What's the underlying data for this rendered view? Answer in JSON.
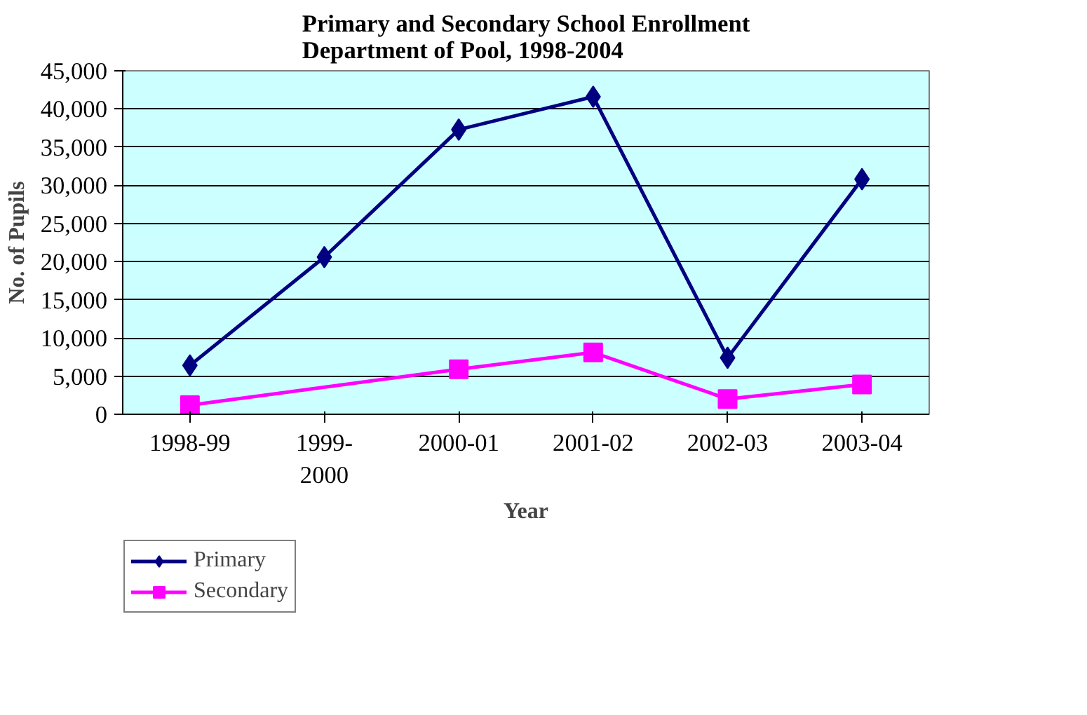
{
  "chart_data": {
    "type": "line",
    "title": "Primary and Secondary School Enrollment\nDepartment of Pool, 1998-2004",
    "xlabel": "Year",
    "ylabel": "No. of Pupils",
    "categories": [
      "1998-99",
      "1999-2000",
      "2000-01",
      "2001-02",
      "2002-03",
      "2003-04"
    ],
    "series": [
      {
        "name": "Primary",
        "color": "#000080",
        "marker": "diamond",
        "values": [
          6400,
          20600,
          37300,
          41600,
          7400,
          30800
        ]
      },
      {
        "name": "Secondary",
        "color": "#ff00ff",
        "marker": "square",
        "values": [
          1200,
          null,
          5900,
          8100,
          2000,
          3900
        ]
      }
    ],
    "ylim": [
      0,
      45000
    ],
    "yticks": [
      {
        "value": 0,
        "label": "0"
      },
      {
        "value": 5000,
        "label": "5,000"
      },
      {
        "value": 10000,
        "label": "10,000"
      },
      {
        "value": 15000,
        "label": "15,000"
      },
      {
        "value": 20000,
        "label": "20,000"
      },
      {
        "value": 25000,
        "label": "25,000"
      },
      {
        "value": 30000,
        "label": "30,000"
      },
      {
        "value": 35000,
        "label": "35,000"
      },
      {
        "value": 40000,
        "label": "40,000"
      },
      {
        "value": 45000,
        "label": "45,000"
      }
    ],
    "grid": "y",
    "legend": "bottom left"
  }
}
